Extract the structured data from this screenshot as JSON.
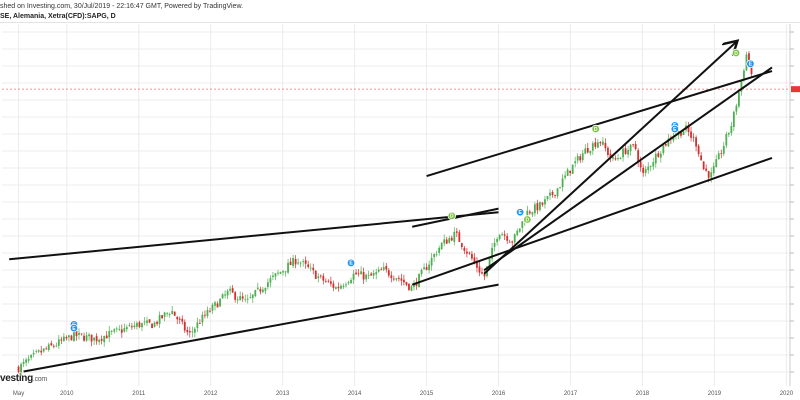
{
  "header": {
    "publish_line": "shed on Investing.com, 30/Jul/2019 - 22:16:47 GMT, Powered by TradingView.",
    "instrument": "SE, Alemania, Xetra(CFD):SAPG, D"
  },
  "watermark": {
    "brand": "vesting",
    "suffix": ".com"
  },
  "colors": {
    "up": "#4caf50",
    "down": "#d32f2f",
    "trendline": "#111111",
    "current_price_line": "#e57373",
    "price_marker": "#e53935",
    "badge_dividend": "#7cc242",
    "badge_earnings": "#2196f3",
    "grid": "#ececec",
    "axis_text": "#555555"
  },
  "chart_data": {
    "type": "line",
    "title": "SE, Alemania, Xetra(CFD):SAPG, D",
    "xlabel": "",
    "ylabel": "",
    "x_tick_labels": [
      "May",
      "2010",
      "2011",
      "2012",
      "2013",
      "2014",
      "2015",
      "2016",
      "2017",
      "2018",
      "2019",
      "2020"
    ],
    "x_tick_values": [
      2009.33,
      2010.0,
      2011.0,
      2012.0,
      2013.0,
      2014.0,
      2015.0,
      2016.0,
      2017.0,
      2018.0,
      2019.0,
      2020.0
    ],
    "xlim": [
      2009.1,
      2020.05
    ],
    "ylim": [
      30,
      130
    ],
    "y_tick_labels_visible": false,
    "grid": true,
    "candle_spacing_years": 0.035,
    "series": [
      {
        "values": [
          [
            2009.33,
            35
          ],
          [
            2009.6,
            39
          ],
          [
            2009.9,
            42
          ],
          [
            2010.1,
            44
          ],
          [
            2010.4,
            43
          ],
          [
            2010.7,
            45
          ],
          [
            2011.0,
            47
          ],
          [
            2011.2,
            47
          ],
          [
            2011.45,
            51
          ],
          [
            2011.7,
            44
          ],
          [
            2011.85,
            48
          ],
          [
            2012.0,
            51
          ],
          [
            2012.25,
            56
          ],
          [
            2012.5,
            53
          ],
          [
            2012.75,
            58
          ],
          [
            2013.0,
            62
          ],
          [
            2013.2,
            65
          ],
          [
            2013.5,
            60
          ],
          [
            2013.75,
            57
          ],
          [
            2014.0,
            61
          ],
          [
            2014.2,
            60
          ],
          [
            2014.4,
            62
          ],
          [
            2014.6,
            60
          ],
          [
            2014.8,
            57
          ],
          [
            2015.0,
            63
          ],
          [
            2015.2,
            69
          ],
          [
            2015.4,
            72
          ],
          [
            2015.6,
            66
          ],
          [
            2015.8,
            60
          ],
          [
            2016.0,
            73
          ],
          [
            2016.2,
            70
          ],
          [
            2016.4,
            78
          ],
          [
            2016.6,
            80
          ],
          [
            2016.8,
            84
          ],
          [
            2017.0,
            90
          ],
          [
            2017.2,
            95
          ],
          [
            2017.4,
            98
          ],
          [
            2017.6,
            92
          ],
          [
            2017.75,
            95
          ],
          [
            2017.9,
            96
          ],
          [
            2018.0,
            88
          ],
          [
            2018.2,
            94
          ],
          [
            2018.4,
            99
          ],
          [
            2018.6,
            101
          ],
          [
            2018.75,
            97
          ],
          [
            2018.85,
            90
          ],
          [
            2018.95,
            88
          ],
          [
            2019.1,
            95
          ],
          [
            2019.25,
            103
          ],
          [
            2019.35,
            112
          ],
          [
            2019.45,
            122
          ],
          [
            2019.55,
            113
          ]
        ]
      }
    ],
    "current_price": 112,
    "trendlines": [
      {
        "from": [
          2009.2,
          65
        ],
        "to": [
          2016.0,
          78
        ]
      },
      {
        "from": [
          2009.4,
          34
        ],
        "to": [
          2016.0,
          58
        ]
      },
      {
        "from": [
          2014.8,
          74
        ],
        "to": [
          2016.0,
          79
        ]
      },
      {
        "from": [
          2014.8,
          58
        ],
        "to": [
          2019.8,
          93
        ]
      },
      {
        "from": [
          2015.8,
          62
        ],
        "to": [
          2019.8,
          118
        ]
      },
      {
        "from": [
          2015.0,
          88
        ],
        "to": [
          2019.8,
          117
        ]
      },
      {
        "from": [
          2015.8,
          61
        ],
        "to": [
          2019.3,
          125
        ],
        "arrow": true
      }
    ],
    "event_badges": [
      {
        "x": 2010.1,
        "y": 47,
        "label": "E"
      },
      {
        "x": 2010.1,
        "y": 46,
        "label": "E"
      },
      {
        "x": 2013.95,
        "y": 64,
        "label": "E"
      },
      {
        "x": 2015.35,
        "y": 77,
        "label": "D"
      },
      {
        "x": 2016.3,
        "y": 78,
        "label": "E"
      },
      {
        "x": 2016.4,
        "y": 76,
        "label": "D"
      },
      {
        "x": 2017.35,
        "y": 101,
        "label": "D"
      },
      {
        "x": 2018.45,
        "y": 102,
        "label": "E"
      },
      {
        "x": 2018.45,
        "y": 101,
        "label": "E"
      },
      {
        "x": 2019.3,
        "y": 122,
        "label": "D"
      },
      {
        "x": 2019.5,
        "y": 119,
        "label": "E"
      }
    ]
  }
}
